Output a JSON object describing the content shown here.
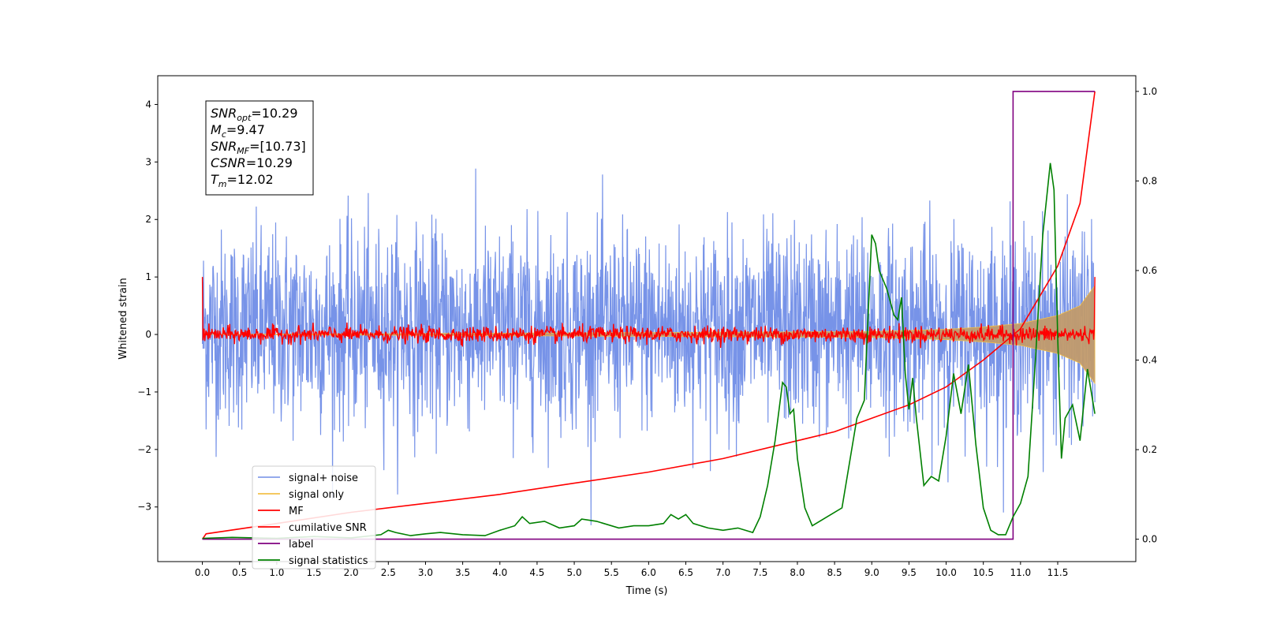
{
  "chart_data": {
    "type": "line",
    "title": "",
    "xlabel": "Time (s)",
    "ylabel": "Whitened strain",
    "xlim": [
      -0.6,
      12.55
    ],
    "ylim": [
      -3.95,
      4.5
    ],
    "y2lim": [
      -0.05,
      1.035
    ],
    "xticks": [
      "0.0",
      "0.5",
      "1.0",
      "1.5",
      "2.0",
      "2.5",
      "3.0",
      "3.5",
      "4.0",
      "4.5",
      "5.0",
      "5.5",
      "6.0",
      "6.5",
      "7.0",
      "7.5",
      "8.0",
      "8.5",
      "9.0",
      "9.5",
      "10.0",
      "10.5",
      "11.0",
      "11.5"
    ],
    "yticks": [
      "−3",
      "−2",
      "−1",
      "0",
      "1",
      "2",
      "3",
      "4"
    ],
    "y2ticks": [
      "0.0",
      "0.2",
      "0.4",
      "0.6",
      "0.8",
      "1.0"
    ],
    "grid": false,
    "legend_position": "lower-left",
    "annotation_lines": [
      {
        "base": "SNR",
        "sub": "opt",
        "value": "=10.29"
      },
      {
        "base": "M",
        "sub": "c",
        "value": "=9.47"
      },
      {
        "base": "SNR",
        "sub": "MF",
        "value": "=[10.73]"
      },
      {
        "base": "CSNR",
        "sub": "",
        "value": "=10.29"
      },
      {
        "base": "T",
        "sub": "m",
        "value": "=12.02"
      }
    ],
    "series": [
      {
        "name": "signal+ noise",
        "color": "#7793e8",
        "axis": "left",
        "style": "noise",
        "std": 0.85
      },
      {
        "name": "signal only",
        "color": "#f2c04a",
        "axis": "left",
        "style": "envelope",
        "envelope_x": [
          0,
          9.0,
          10.0,
          10.5,
          11.0,
          11.5,
          11.8,
          12.0
        ],
        "envelope_y": [
          0.0,
          0.05,
          0.09,
          0.13,
          0.19,
          0.33,
          0.5,
          0.85
        ]
      },
      {
        "name": "MF",
        "color": "#ff0000",
        "axis": "left",
        "style": "mf",
        "start": 1.0
      },
      {
        "name": "cumilative SNR",
        "color": "#ff0000",
        "axis": "right",
        "x": [
          0,
          0.05,
          1,
          2,
          3,
          4,
          5,
          6,
          7,
          8,
          8.5,
          9,
          9.5,
          10,
          10.5,
          11,
          11.5,
          11.8,
          12.0
        ],
        "y": [
          0.0,
          0.012,
          0.035,
          0.06,
          0.08,
          0.1,
          0.125,
          0.15,
          0.18,
          0.22,
          0.24,
          0.27,
          0.3,
          0.34,
          0.4,
          0.47,
          0.61,
          0.75,
          1.0
        ]
      },
      {
        "name": "label",
        "color": "#800080",
        "axis": "right",
        "x": [
          0,
          10.9,
          10.9,
          11.0,
          12.0
        ],
        "y": [
          0,
          0,
          1.0,
          1.0,
          1.0
        ]
      },
      {
        "name": "signal statistics",
        "color": "#008000",
        "axis": "right",
        "x": [
          0,
          0.4,
          1.0,
          1.5,
          2.0,
          2.4,
          2.5,
          2.6,
          2.8,
          3.0,
          3.2,
          3.5,
          3.8,
          4.0,
          4.2,
          4.3,
          4.4,
          4.6,
          4.8,
          5.0,
          5.1,
          5.3,
          5.6,
          5.8,
          6.0,
          6.2,
          6.3,
          6.4,
          6.5,
          6.6,
          6.8,
          7.0,
          7.2,
          7.4,
          7.5,
          7.6,
          7.7,
          7.8,
          7.85,
          7.9,
          7.95,
          8.0,
          8.1,
          8.2,
          8.4,
          8.6,
          8.8,
          8.9,
          9.0,
          9.05,
          9.1,
          9.2,
          9.3,
          9.35,
          9.4,
          9.45,
          9.5,
          9.55,
          9.6,
          9.7,
          9.8,
          9.9,
          10.0,
          10.1,
          10.2,
          10.3,
          10.4,
          10.5,
          10.6,
          10.7,
          10.8,
          10.9,
          11.0,
          11.1,
          11.2,
          11.3,
          11.4,
          11.45,
          11.5,
          11.55,
          11.6,
          11.7,
          11.8,
          11.9,
          12.0
        ],
        "y": [
          0.002,
          0.004,
          0.002,
          0.006,
          0.003,
          0.01,
          0.02,
          0.015,
          0.008,
          0.012,
          0.015,
          0.01,
          0.008,
          0.02,
          0.03,
          0.05,
          0.035,
          0.04,
          0.025,
          0.03,
          0.045,
          0.04,
          0.025,
          0.03,
          0.03,
          0.035,
          0.055,
          0.045,
          0.055,
          0.035,
          0.025,
          0.02,
          0.025,
          0.015,
          0.05,
          0.12,
          0.22,
          0.35,
          0.34,
          0.28,
          0.29,
          0.18,
          0.07,
          0.03,
          0.05,
          0.07,
          0.27,
          0.31,
          0.68,
          0.66,
          0.6,
          0.56,
          0.5,
          0.49,
          0.54,
          0.37,
          0.29,
          0.36,
          0.27,
          0.12,
          0.14,
          0.13,
          0.23,
          0.37,
          0.28,
          0.39,
          0.21,
          0.07,
          0.02,
          0.01,
          0.01,
          0.05,
          0.08,
          0.14,
          0.4,
          0.68,
          0.84,
          0.78,
          0.45,
          0.18,
          0.27,
          0.3,
          0.22,
          0.38,
          0.28
        ]
      }
    ]
  }
}
